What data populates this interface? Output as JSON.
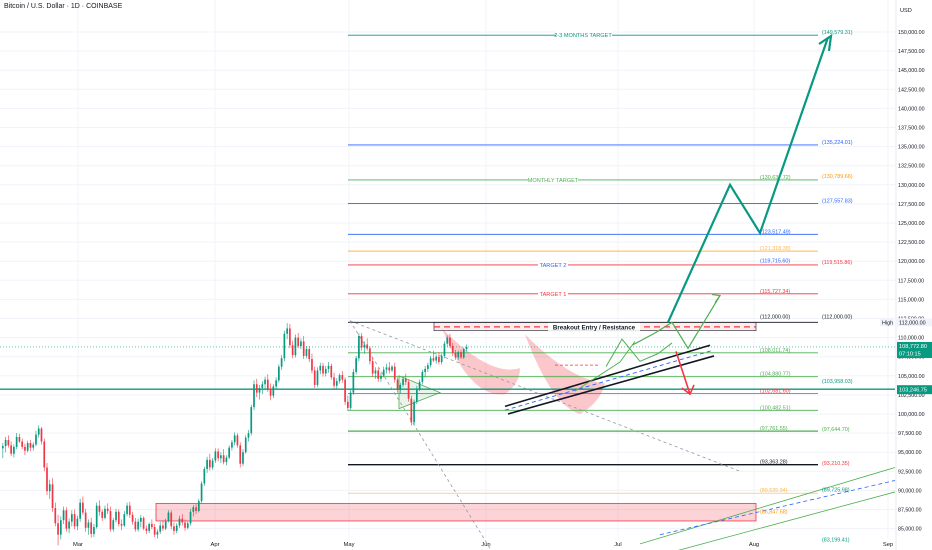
{
  "header": {
    "title": "Bitcoin / U.S. Dollar · 1D · COINBASE"
  },
  "chart_data": {
    "type": "candlestick",
    "currency": "USD",
    "x_ticks": [
      "Mar",
      "Apr",
      "May",
      "Jun",
      "Jul",
      "Aug",
      "Sep"
    ],
    "y_ticks": [
      "150,000.00",
      "147,500.00",
      "145,000.00",
      "142,500.00",
      "140,000.00",
      "137,500.00",
      "135,000.00",
      "132,500.00",
      "130,000.00",
      "127,500.00",
      "125,000.00",
      "122,500.00",
      "120,000.00",
      "117,500.00",
      "115,000.00",
      "112,500.00",
      "110,000.00",
      "107,500.00",
      "105,000.00",
      "102,500.00",
      "100,000.00",
      "97,500.00",
      "95,000.00",
      "92,500.00",
      "90,000.00",
      "87,500.00",
      "85,000.00"
    ],
    "ylim": [
      84200,
      151800
    ],
    "price_tags": {
      "high_label": "High",
      "high_value": "112,000.00",
      "last_price": "108,772.80",
      "countdown": "07:10:15",
      "support": "103,246.75"
    },
    "text_labels": {
      "target_3m": "2-3 MONTHS TARGET",
      "monthly_target": "MONTHLY TARGET",
      "target_2": "TARGET 2",
      "target_1": "TARGET 1",
      "breakout": "Breakout Entry / Resistance"
    },
    "levels": [
      {
        "value": 149579.31,
        "label": "(149,579.31)",
        "color": "#089981"
      },
      {
        "value": 135224.01,
        "label": "(135,224.01)",
        "color": "#2962ff"
      },
      {
        "value": 130637.72,
        "label": "(130,637.72)",
        "color": "#4caf50"
      },
      {
        "value": 130789.66,
        "label": "(130,789.66)",
        "color": "#ff9800"
      },
      {
        "value": 127557.83,
        "label": "(127,557.83)",
        "color": "#2962ff"
      },
      {
        "value": 123517.49,
        "label": "(123,517.49)",
        "color": "#2962ff"
      },
      {
        "value": 121318.38,
        "label": "(121,318.38)",
        "color": "#ffb74d"
      },
      {
        "value": 119715.6,
        "label": "(119,715.60)",
        "color": "#2962ff"
      },
      {
        "value": 119515.86,
        "label": "(119,515.86)",
        "color": "#f23645"
      },
      {
        "value": 115727.34,
        "label": "(115,727.34)",
        "color": "#f23645"
      },
      {
        "value": 112000.0,
        "label": "(112,000.00)",
        "color": "#131722"
      },
      {
        "value": 108011.74,
        "label": "(108,011.74)",
        "color": "#4caf50"
      },
      {
        "value": 104880.77,
        "label": "(104,880.77)",
        "color": "#4caf50"
      },
      {
        "value": 103958.03,
        "label": "(103,958.03)",
        "color": "#089981"
      },
      {
        "value": 102681.6,
        "label": "(102,681.60)",
        "color": "#f23645"
      },
      {
        "value": 100482.51,
        "label": "(100,482.51)",
        "color": "#4caf50"
      },
      {
        "value": 97761.55,
        "label": "(97,761.55)",
        "color": "#4caf50"
      },
      {
        "value": 97644.7,
        "label": "(97,644.70)",
        "color": "#4caf50"
      },
      {
        "value": 93363.28,
        "label": "(93,363.28)",
        "color": "#131722"
      },
      {
        "value": 93210.35,
        "label": "(93,210.35)",
        "color": "#f23645"
      },
      {
        "value": 89635.94,
        "label": "(89,635.94)",
        "color": "#ffb74d"
      },
      {
        "value": 89725.98,
        "label": "(89,725.98)",
        "color": "#089981"
      },
      {
        "value": 86847.68,
        "label": "(86,847.68)",
        "color": "#ff9800"
      },
      {
        "value": 83199.41,
        "label": "(83,199.41)",
        "color": "#089981"
      }
    ],
    "candles": [
      [
        95500,
        96200,
        94200,
        95800
      ],
      [
        95800,
        97000,
        95000,
        96600
      ],
      [
        96600,
        97200,
        95600,
        95900
      ],
      [
        95900,
        96400,
        94500,
        94800
      ],
      [
        94800,
        96000,
        94300,
        95700
      ],
      [
        95700,
        97500,
        95400,
        97000
      ],
      [
        97000,
        97400,
        96200,
        96400
      ],
      [
        96400,
        96800,
        95400,
        95700
      ],
      [
        95700,
        96100,
        94600,
        95200
      ],
      [
        95200,
        96500,
        95000,
        96200
      ],
      [
        96200,
        96600,
        95100,
        95600
      ],
      [
        95600,
        96300,
        95200,
        96000
      ],
      [
        96000,
        97800,
        95800,
        97300
      ],
      [
        97300,
        98500,
        96900,
        98100
      ],
      [
        98100,
        98300,
        96000,
        96400
      ],
      [
        96400,
        96800,
        92500,
        93000
      ],
      [
        93000,
        93600,
        89400,
        89900
      ],
      [
        89900,
        91400,
        88900,
        90800
      ],
      [
        90800,
        91600,
        87200,
        87700
      ],
      [
        87700,
        88400,
        85300,
        85700
      ],
      [
        85700,
        86800,
        82800,
        84200
      ],
      [
        84200,
        86600,
        83600,
        86100
      ],
      [
        86100,
        87900,
        85600,
        87400
      ],
      [
        87400,
        87800,
        84600,
        85000
      ],
      [
        85000,
        86300,
        84400,
        85900
      ],
      [
        85900,
        87400,
        85300,
        86900
      ],
      [
        86900,
        87500,
        84900,
        85300
      ],
      [
        85300,
        86700,
        84800,
        86300
      ],
      [
        86300,
        88900,
        85900,
        88400
      ],
      [
        88400,
        89200,
        86800,
        87100
      ],
      [
        87100,
        87600,
        84600,
        85100
      ],
      [
        85100,
        86200,
        84200,
        85800
      ],
      [
        85800,
        86400,
        83800,
        84300
      ],
      [
        84300,
        85600,
        83900,
        85200
      ],
      [
        85200,
        88400,
        85000,
        88000
      ],
      [
        88000,
        88700,
        86700,
        87200
      ],
      [
        87200,
        87500,
        86000,
        86400
      ],
      [
        86400,
        88000,
        86200,
        87600
      ],
      [
        87600,
        88300,
        86900,
        87300
      ],
      [
        87300,
        87900,
        84600,
        84900
      ],
      [
        84900,
        86400,
        84600,
        86100
      ],
      [
        86100,
        87600,
        85800,
        87200
      ],
      [
        87200,
        87500,
        85300,
        85600
      ],
      [
        85600,
        86200,
        84800,
        85400
      ],
      [
        85400,
        87300,
        85200,
        86900
      ],
      [
        86900,
        88400,
        86600,
        88000
      ],
      [
        88000,
        88500,
        86400,
        86800
      ],
      [
        86800,
        87200,
        85500,
        85900
      ],
      [
        85900,
        86400,
        84600,
        84900
      ],
      [
        84900,
        86300,
        84600,
        85900
      ],
      [
        85900,
        86800,
        85200,
        86400
      ],
      [
        86400,
        86600,
        84800,
        85000
      ],
      [
        85000,
        85400,
        84300,
        84700
      ],
      [
        84700,
        85800,
        84400,
        85600
      ],
      [
        85600,
        86200,
        84900,
        85200
      ],
      [
        85200,
        85600,
        83900,
        84200
      ],
      [
        84200,
        84900,
        83700,
        84600
      ],
      [
        84600,
        85900,
        84300,
        85400
      ],
      [
        85400,
        86100,
        84700,
        85000
      ],
      [
        85000,
        86300,
        84800,
        86000
      ],
      [
        86000,
        87400,
        85800,
        87100
      ],
      [
        87100,
        87400,
        84900,
        85300
      ],
      [
        85300,
        85800,
        84200,
        84700
      ],
      [
        84700,
        85700,
        84400,
        85400
      ],
      [
        85400,
        86700,
        85100,
        86300
      ],
      [
        86300,
        86900,
        85400,
        85800
      ],
      [
        85800,
        86200,
        84700,
        85100
      ],
      [
        85100,
        86000,
        84900,
        85700
      ],
      [
        85700,
        87600,
        85400,
        87200
      ],
      [
        87200,
        88100,
        86600,
        87800
      ],
      [
        87800,
        88200,
        86900,
        87300
      ],
      [
        87300,
        88900,
        87100,
        88600
      ],
      [
        88600,
        91200,
        88300,
        90900
      ],
      [
        90900,
        93100,
        90600,
        92800
      ],
      [
        92800,
        94400,
        92300,
        94000
      ],
      [
        94000,
        94800,
        92600,
        93000
      ],
      [
        93000,
        94200,
        92700,
        93900
      ],
      [
        93900,
        95500,
        93600,
        95100
      ],
      [
        95100,
        95500,
        93800,
        94200
      ],
      [
        94200,
        95000,
        93600,
        94600
      ],
      [
        94600,
        95400,
        93400,
        93700
      ],
      [
        93700,
        94600,
        93300,
        94300
      ],
      [
        94300,
        95900,
        94100,
        95600
      ],
      [
        95600,
        96600,
        95200,
        96300
      ],
      [
        96300,
        97600,
        95900,
        97200
      ],
      [
        97200,
        97500,
        95600,
        95900
      ],
      [
        95900,
        96300,
        93000,
        93500
      ],
      [
        93500,
        95400,
        93200,
        95000
      ],
      [
        95000,
        97200,
        94800,
        96900
      ],
      [
        96900,
        97900,
        96400,
        97500
      ],
      [
        97500,
        101200,
        97200,
        100900
      ],
      [
        100900,
        104400,
        100500,
        103900
      ],
      [
        103900,
        104600,
        102200,
        102800
      ],
      [
        102800,
        103800,
        101900,
        103400
      ],
      [
        103400,
        104300,
        102600,
        103900
      ],
      [
        103900,
        104900,
        103200,
        104500
      ],
      [
        104500,
        105200,
        102900,
        103300
      ],
      [
        103300,
        104000,
        101800,
        102400
      ],
      [
        102400,
        103900,
        102100,
        103600
      ],
      [
        103600,
        104800,
        103300,
        104400
      ],
      [
        104400,
        106500,
        104100,
        106200
      ],
      [
        106200,
        107700,
        105800,
        107300
      ],
      [
        107300,
        110900,
        106900,
        110500
      ],
      [
        110500,
        111900,
        109800,
        111200
      ],
      [
        111200,
        111800,
        108600,
        109000
      ],
      [
        109000,
        109600,
        107300,
        107700
      ],
      [
        107700,
        110400,
        107400,
        110000
      ],
      [
        110000,
        110600,
        108600,
        108900
      ],
      [
        108900,
        109900,
        108500,
        109500
      ],
      [
        109500,
        110200,
        107200,
        107600
      ],
      [
        107600,
        108900,
        107300,
        108500
      ],
      [
        108500,
        108900,
        106800,
        107200
      ],
      [
        107200,
        107900,
        105300,
        105700
      ],
      [
        105700,
        106200,
        103400,
        103800
      ],
      [
        103800,
        106100,
        103500,
        105700
      ],
      [
        105700,
        106700,
        105200,
        106300
      ],
      [
        106300,
        106700,
        104900,
        105300
      ],
      [
        105300,
        106300,
        104900,
        105900
      ],
      [
        105900,
        106800,
        105400,
        106300
      ],
      [
        106300,
        106600,
        104500,
        104800
      ],
      [
        104800,
        105400,
        103300,
        103700
      ],
      [
        103700,
        104700,
        103300,
        104300
      ],
      [
        104300,
        105300,
        104000,
        105100
      ],
      [
        105100,
        105600,
        104100,
        104500
      ],
      [
        104500,
        104800,
        101200,
        101600
      ],
      [
        101600,
        102400,
        100400,
        100800
      ],
      [
        100800,
        103200,
        100500,
        102800
      ],
      [
        102800,
        105900,
        102500,
        105500
      ],
      [
        105500,
        107600,
        105200,
        107300
      ],
      [
        107300,
        110600,
        106900,
        110200
      ],
      [
        110200,
        110600,
        108300,
        108700
      ],
      [
        108700,
        109500,
        107900,
        109100
      ],
      [
        109100,
        109900,
        108300,
        108600
      ],
      [
        108600,
        108900,
        106500,
        106900
      ],
      [
        106900,
        107400,
        104900,
        105300
      ],
      [
        105300,
        106100,
        104600,
        105700
      ],
      [
        105700,
        106000,
        104200,
        104600
      ],
      [
        104600,
        105400,
        104200,
        105000
      ],
      [
        105000,
        106200,
        104800,
        105800
      ],
      [
        105800,
        106600,
        105300,
        106100
      ],
      [
        106100,
        106800,
        105300,
        105700
      ],
      [
        105700,
        106400,
        105500,
        106200
      ],
      [
        106200,
        106700,
        104100,
        104500
      ],
      [
        104500,
        104800,
        102800,
        103200
      ],
      [
        103200,
        104100,
        102700,
        103800
      ],
      [
        103800,
        104900,
        103500,
        104600
      ],
      [
        104600,
        105300,
        103800,
        104200
      ],
      [
        104200,
        104500,
        101600,
        102000
      ],
      [
        102000,
        102400,
        98500,
        98900
      ],
      [
        98900,
        101900,
        98600,
        101600
      ],
      [
        101600,
        103700,
        101300,
        103300
      ],
      [
        103300,
        104500,
        103000,
        104200
      ],
      [
        104200,
        105800,
        103900,
        105500
      ],
      [
        105500,
        106300,
        104800,
        105900
      ],
      [
        105900,
        106700,
        105500,
        106400
      ],
      [
        106400,
        107600,
        106100,
        107300
      ],
      [
        107300,
        108300,
        106800,
        107000
      ],
      [
        107000,
        107700,
        106600,
        107500
      ],
      [
        107500,
        108100,
        106500,
        106800
      ],
      [
        106800,
        107900,
        106500,
        107600
      ],
      [
        107600,
        109500,
        107300,
        109200
      ],
      [
        109200,
        110300,
        108800,
        110000
      ],
      [
        110000,
        110500,
        108600,
        108900
      ],
      [
        108900,
        109300,
        107600,
        108000
      ],
      [
        108000,
        108400,
        107100,
        107400
      ],
      [
        107400,
        108300,
        107100,
        108100
      ],
      [
        108100,
        108400,
        107200,
        107400
      ],
      [
        107400,
        108700,
        107200,
        108500
      ],
      [
        108500,
        109100,
        108200,
        108772.8
      ]
    ]
  }
}
